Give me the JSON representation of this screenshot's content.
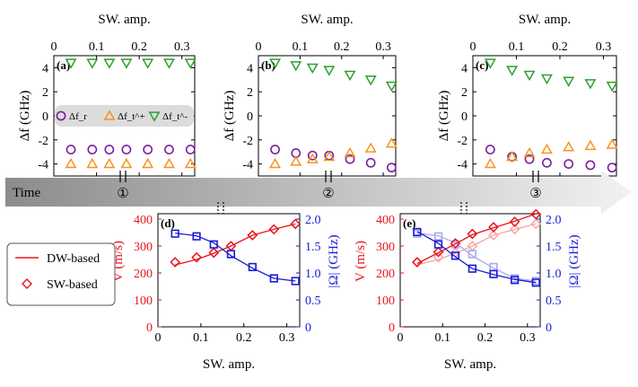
{
  "colors": {
    "purple": "#7b1fa2",
    "orange": "#f7931e",
    "green": "#2ca02c",
    "red": "#e8141b",
    "red_light": "#f4a7a4",
    "blue": "#1a1ad6",
    "blue_light": "#a9a9ee",
    "legend_band": "#dcdcdc"
  },
  "timeline": {
    "label": "Time",
    "markers": [
      "①",
      "②",
      "③"
    ]
  },
  "legend_bottom": {
    "items": [
      {
        "label": "DW-based",
        "marker": "line",
        "color": "#e8141b"
      },
      {
        "label": "SW-based",
        "marker": "diamond",
        "color": "#e8141b"
      }
    ]
  },
  "chart_data": [
    {
      "id": "a",
      "panel_label": "(a)",
      "type": "scatter",
      "top_xlabel": "SW. amp.",
      "ylabel": "Δf (GHz)",
      "xlim": [
        0,
        0.33
      ],
      "ylim": [
        -5,
        5
      ],
      "xticks": [
        "0",
        "0.1",
        "0.2",
        "0.3"
      ],
      "xtick_values": [
        0,
        0.1,
        0.2,
        0.3
      ],
      "yticks": [
        "-4",
        "-2",
        "0",
        "2",
        "4"
      ],
      "ytick_values": [
        -4,
        -2,
        0,
        2,
        4
      ],
      "legend": {
        "labels": [
          "Δf_r",
          "Δf_t^+",
          "Δf_t^-"
        ]
      },
      "x": [
        0.04,
        0.09,
        0.13,
        0.17,
        0.22,
        0.27,
        0.32
      ],
      "series": [
        {
          "name": "Δf_r",
          "marker": "circle",
          "color": "#7b1fa2",
          "values": [
            -2.8,
            -2.8,
            -2.8,
            -2.8,
            -2.8,
            -2.8,
            -2.8
          ]
        },
        {
          "name": "Δf_t^+",
          "marker": "triangle-up",
          "color": "#f7931e",
          "values": [
            -4.0,
            -4.0,
            -4.0,
            -4.0,
            -4.0,
            -4.0,
            -4.0
          ]
        },
        {
          "name": "Δf_t^-",
          "marker": "triangle-down",
          "color": "#2ca02c",
          "values": [
            4.4,
            4.4,
            4.4,
            4.4,
            4.4,
            4.4,
            4.4
          ]
        }
      ]
    },
    {
      "id": "b",
      "panel_label": "(b)",
      "type": "scatter",
      "top_xlabel": "SW. amp.",
      "ylabel": "Δf (GHz)",
      "xlim": [
        0,
        0.33
      ],
      "ylim": [
        -5,
        5
      ],
      "xticks": [
        "0",
        "0.1",
        "0.2",
        "0.3"
      ],
      "xtick_values": [
        0,
        0.1,
        0.2,
        0.3
      ],
      "yticks": [
        "-4",
        "-2",
        "0",
        "2",
        "4"
      ],
      "ytick_values": [
        -4,
        -2,
        0,
        2,
        4
      ],
      "x": [
        0.04,
        0.09,
        0.13,
        0.17,
        0.22,
        0.27,
        0.32
      ],
      "series": [
        {
          "name": "Δf_r",
          "marker": "circle",
          "color": "#7b1fa2",
          "values": [
            -2.8,
            -3.1,
            -3.3,
            -3.3,
            -3.6,
            -3.9,
            -4.3
          ]
        },
        {
          "name": "Δf_t^+",
          "marker": "triangle-up",
          "color": "#f7931e",
          "values": [
            -4.0,
            -3.8,
            -3.6,
            -3.4,
            -3.1,
            -2.7,
            -2.3
          ]
        },
        {
          "name": "Δf_t^-",
          "marker": "triangle-down",
          "color": "#2ca02c",
          "values": [
            4.4,
            4.2,
            4.0,
            3.8,
            3.4,
            3.0,
            2.5
          ]
        }
      ]
    },
    {
      "id": "c",
      "panel_label": "(c)",
      "type": "scatter",
      "top_xlabel": "SW. amp.",
      "ylabel": "Δf (GHz)",
      "xlim": [
        0,
        0.33
      ],
      "ylim": [
        -5,
        5
      ],
      "xticks": [
        "0",
        "0.1",
        "0.2",
        "0.3"
      ],
      "xtick_values": [
        0,
        0.1,
        0.2,
        0.3
      ],
      "yticks": [
        "-4",
        "-2",
        "0",
        "2",
        "4"
      ],
      "ytick_values": [
        -4,
        -2,
        0,
        2,
        4
      ],
      "x": [
        0.04,
        0.09,
        0.13,
        0.17,
        0.22,
        0.27,
        0.32
      ],
      "series": [
        {
          "name": "Δf_r",
          "marker": "circle",
          "color": "#7b1fa2",
          "values": [
            -2.8,
            -3.4,
            -3.6,
            -3.9,
            -4.0,
            -4.1,
            -4.3
          ]
        },
        {
          "name": "Δf_t^+",
          "marker": "triangle-up",
          "color": "#f7931e",
          "values": [
            -4.0,
            -3.4,
            -3.1,
            -2.8,
            -2.6,
            -2.5,
            -2.4
          ]
        },
        {
          "name": "Δf_t^-",
          "marker": "triangle-down",
          "color": "#2ca02c",
          "values": [
            4.4,
            3.8,
            3.4,
            3.1,
            2.9,
            2.7,
            2.5
          ]
        }
      ]
    },
    {
      "id": "d",
      "panel_label": "(d)",
      "type": "line",
      "xlabel": "SW. amp.",
      "ylabel": "V (m/s)",
      "ylabel_right": "|Ω| (GHz)",
      "xlim": [
        0,
        0.33
      ],
      "ylim": [
        0,
        420
      ],
      "ylim_right": [
        0,
        2.1
      ],
      "xticks": [
        "0",
        "0.1",
        "0.2",
        "0.3"
      ],
      "xtick_values": [
        0,
        0.1,
        0.2,
        0.3
      ],
      "yticks": [
        "0",
        "100",
        "200",
        "300",
        "400"
      ],
      "ytick_values": [
        0,
        100,
        200,
        300,
        400
      ],
      "yticks_right": [
        "0",
        "0.5",
        "1.0",
        "1.5",
        "2.0"
      ],
      "ytick_values_right": [
        0,
        0.5,
        1.0,
        1.5,
        2.0
      ],
      "x": [
        0.04,
        0.09,
        0.13,
        0.17,
        0.22,
        0.27,
        0.32
      ],
      "series": [
        {
          "name": "V SW-based",
          "axis": "left",
          "marker": "diamond",
          "color": "#e8141b",
          "values": [
            240,
            258,
            275,
            300,
            340,
            362,
            382
          ]
        },
        {
          "name": "V DW-based",
          "axis": "left",
          "marker": "line",
          "color": "#e8141b",
          "values": [
            230,
            250,
            273,
            300,
            340,
            362,
            382
          ]
        },
        {
          "name": "|Ω| SW-based",
          "axis": "right",
          "marker": "square",
          "color": "#1a1ad6",
          "values": [
            1.73,
            1.68,
            1.53,
            1.35,
            1.11,
            0.9,
            0.85
          ]
        },
        {
          "name": "|Ω| DW-based",
          "axis": "right",
          "marker": "line",
          "color": "#1a1ad6",
          "values": [
            1.74,
            1.69,
            1.56,
            1.32,
            1.09,
            0.9,
            0.85
          ]
        }
      ]
    },
    {
      "id": "e",
      "panel_label": "(e)",
      "type": "line",
      "xlabel": "SW. amp.",
      "ylabel": "V (m/s)",
      "ylabel_right": "|Ω| (GHz)",
      "xlim": [
        0,
        0.33
      ],
      "ylim": [
        0,
        420
      ],
      "ylim_right": [
        0,
        2.1
      ],
      "xticks": [
        "0",
        "0.1",
        "0.2",
        "0.3"
      ],
      "xtick_values": [
        0,
        0.1,
        0.2,
        0.3
      ],
      "yticks": [
        "0",
        "100",
        "200",
        "300",
        "400"
      ],
      "ytick_values": [
        0,
        100,
        200,
        300,
        400
      ],
      "yticks_right": [
        "0",
        "0.5",
        "1.0",
        "1.5",
        "2.0"
      ],
      "ytick_values_right": [
        0,
        0.5,
        1.0,
        1.5,
        2.0
      ],
      "x": [
        0.04,
        0.09,
        0.13,
        0.17,
        0.22,
        0.27,
        0.32
      ],
      "series": [
        {
          "name": "V SW-based (faded)",
          "axis": "left",
          "marker": "diamond",
          "color": "#f4a7a4",
          "values": [
            240,
            258,
            275,
            300,
            340,
            362,
            382
          ]
        },
        {
          "name": "V DW-based (faded)",
          "axis": "left",
          "marker": "line",
          "color": "#f4a7a4",
          "values": [
            230,
            250,
            273,
            300,
            340,
            362,
            382
          ]
        },
        {
          "name": "|Ω| SW-based (faded)",
          "axis": "right",
          "marker": "square",
          "color": "#a9a9ee",
          "values": [
            1.73,
            1.68,
            1.53,
            1.35,
            1.11,
            0.9,
            0.85
          ]
        },
        {
          "name": "|Ω| DW-based (faded)",
          "axis": "right",
          "marker": "line",
          "color": "#a9a9ee",
          "values": [
            1.74,
            1.69,
            1.56,
            1.32,
            1.09,
            0.9,
            0.85
          ]
        },
        {
          "name": "V SW-based",
          "axis": "left",
          "marker": "diamond",
          "color": "#e8141b",
          "values": [
            240,
            278,
            310,
            345,
            370,
            390,
            418
          ]
        },
        {
          "name": "V DW-based",
          "axis": "left",
          "marker": "line",
          "color": "#e8141b",
          "values": [
            235,
            275,
            308,
            342,
            368,
            392,
            420
          ]
        },
        {
          "name": "|Ω| SW-based",
          "axis": "right",
          "marker": "square",
          "color": "#1a1ad6",
          "values": [
            1.76,
            1.53,
            1.32,
            1.08,
            0.98,
            0.87,
            0.82
          ]
        },
        {
          "name": "|Ω| DW-based",
          "axis": "right",
          "marker": "line",
          "color": "#1a1ad6",
          "values": [
            1.77,
            1.55,
            1.3,
            1.08,
            0.97,
            0.88,
            0.82
          ]
        }
      ]
    }
  ]
}
